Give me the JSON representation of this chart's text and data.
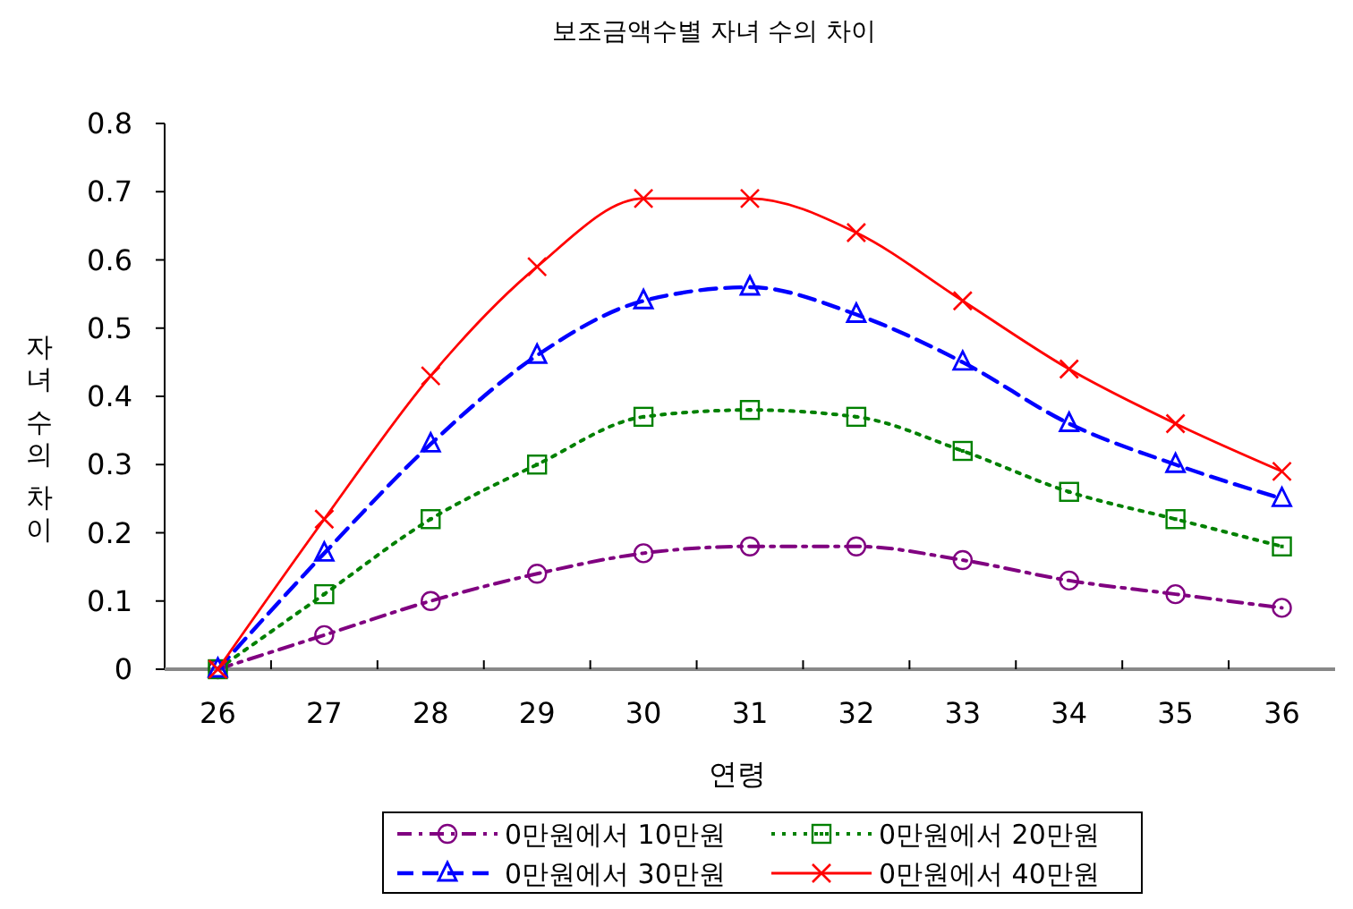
{
  "chart_data": {
    "type": "line",
    "title": "보조금액수별 자녀 수의 차이",
    "xlabel": "연령",
    "ylabel": "자녀 수의 차이",
    "categories": [
      "26",
      "27",
      "28",
      "29",
      "30",
      "31",
      "32",
      "33",
      "34",
      "35",
      "36"
    ],
    "ylim": [
      0,
      0.8
    ],
    "yticks": [
      0,
      0.1,
      0.2,
      0.3,
      0.4,
      0.5,
      0.6,
      0.7,
      0.8
    ],
    "grid": false,
    "legend": "bottom",
    "series": [
      {
        "name": "0만원에서 10만원",
        "color": "#800080",
        "marker": "circle",
        "line_style": "dashdot",
        "values": [
          0,
          0.05,
          0.1,
          0.14,
          0.17,
          0.18,
          0.18,
          0.16,
          0.13,
          0.11,
          0.09
        ]
      },
      {
        "name": "0만원에서 20만원",
        "color": "#008000",
        "marker": "square",
        "line_style": "dotted",
        "values": [
          0,
          0.11,
          0.22,
          0.3,
          0.37,
          0.38,
          0.37,
          0.32,
          0.26,
          0.22,
          0.18
        ]
      },
      {
        "name": "0만원에서 30만원",
        "color": "#0000ff",
        "marker": "triangle",
        "line_style": "dashed",
        "values": [
          0,
          0.17,
          0.33,
          0.46,
          0.54,
          0.56,
          0.52,
          0.45,
          0.36,
          0.3,
          0.25
        ]
      },
      {
        "name": "0만원에서 40만원",
        "color": "#ff0000",
        "marker": "cross",
        "line_style": "solid",
        "values": [
          0,
          0.22,
          0.43,
          0.59,
          0.69,
          0.69,
          0.64,
          0.54,
          0.44,
          0.36,
          0.29
        ]
      }
    ]
  }
}
